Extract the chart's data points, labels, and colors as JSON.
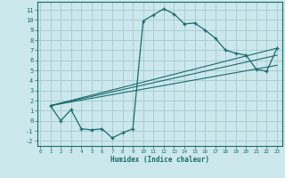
{
  "xlabel": "Humidex (Indice chaleur)",
  "bg_color": "#cce8ec",
  "grid_color": "#aacdd4",
  "line_color": "#1a6b6b",
  "curve_x": [
    1,
    2,
    3,
    4,
    5,
    6,
    7,
    8,
    9,
    10,
    11,
    12,
    13,
    14,
    15,
    16,
    17,
    18,
    19,
    20,
    21,
    22,
    23
  ],
  "curve_y": [
    1.5,
    0.0,
    1.1,
    -0.8,
    -0.9,
    -0.8,
    -1.7,
    -1.2,
    -0.8,
    9.9,
    10.5,
    11.1,
    10.6,
    9.6,
    9.7,
    9.0,
    8.2,
    7.0,
    6.7,
    6.5,
    5.1,
    4.9,
    7.2
  ],
  "line1_x": [
    1,
    23
  ],
  "line1_y": [
    1.5,
    7.2
  ],
  "line2_x": [
    1,
    23
  ],
  "line2_y": [
    1.5,
    6.5
  ],
  "line3_x": [
    1,
    23
  ],
  "line3_y": [
    1.5,
    5.5
  ],
  "xlim": [
    -0.3,
    23.5
  ],
  "ylim": [
    -2.5,
    11.8
  ],
  "xticks": [
    0,
    1,
    2,
    3,
    4,
    5,
    6,
    7,
    8,
    9,
    10,
    11,
    12,
    13,
    14,
    15,
    16,
    17,
    18,
    19,
    20,
    21,
    22,
    23
  ],
  "yticks": [
    -2,
    -1,
    0,
    1,
    2,
    3,
    4,
    5,
    6,
    7,
    8,
    9,
    10,
    11
  ]
}
